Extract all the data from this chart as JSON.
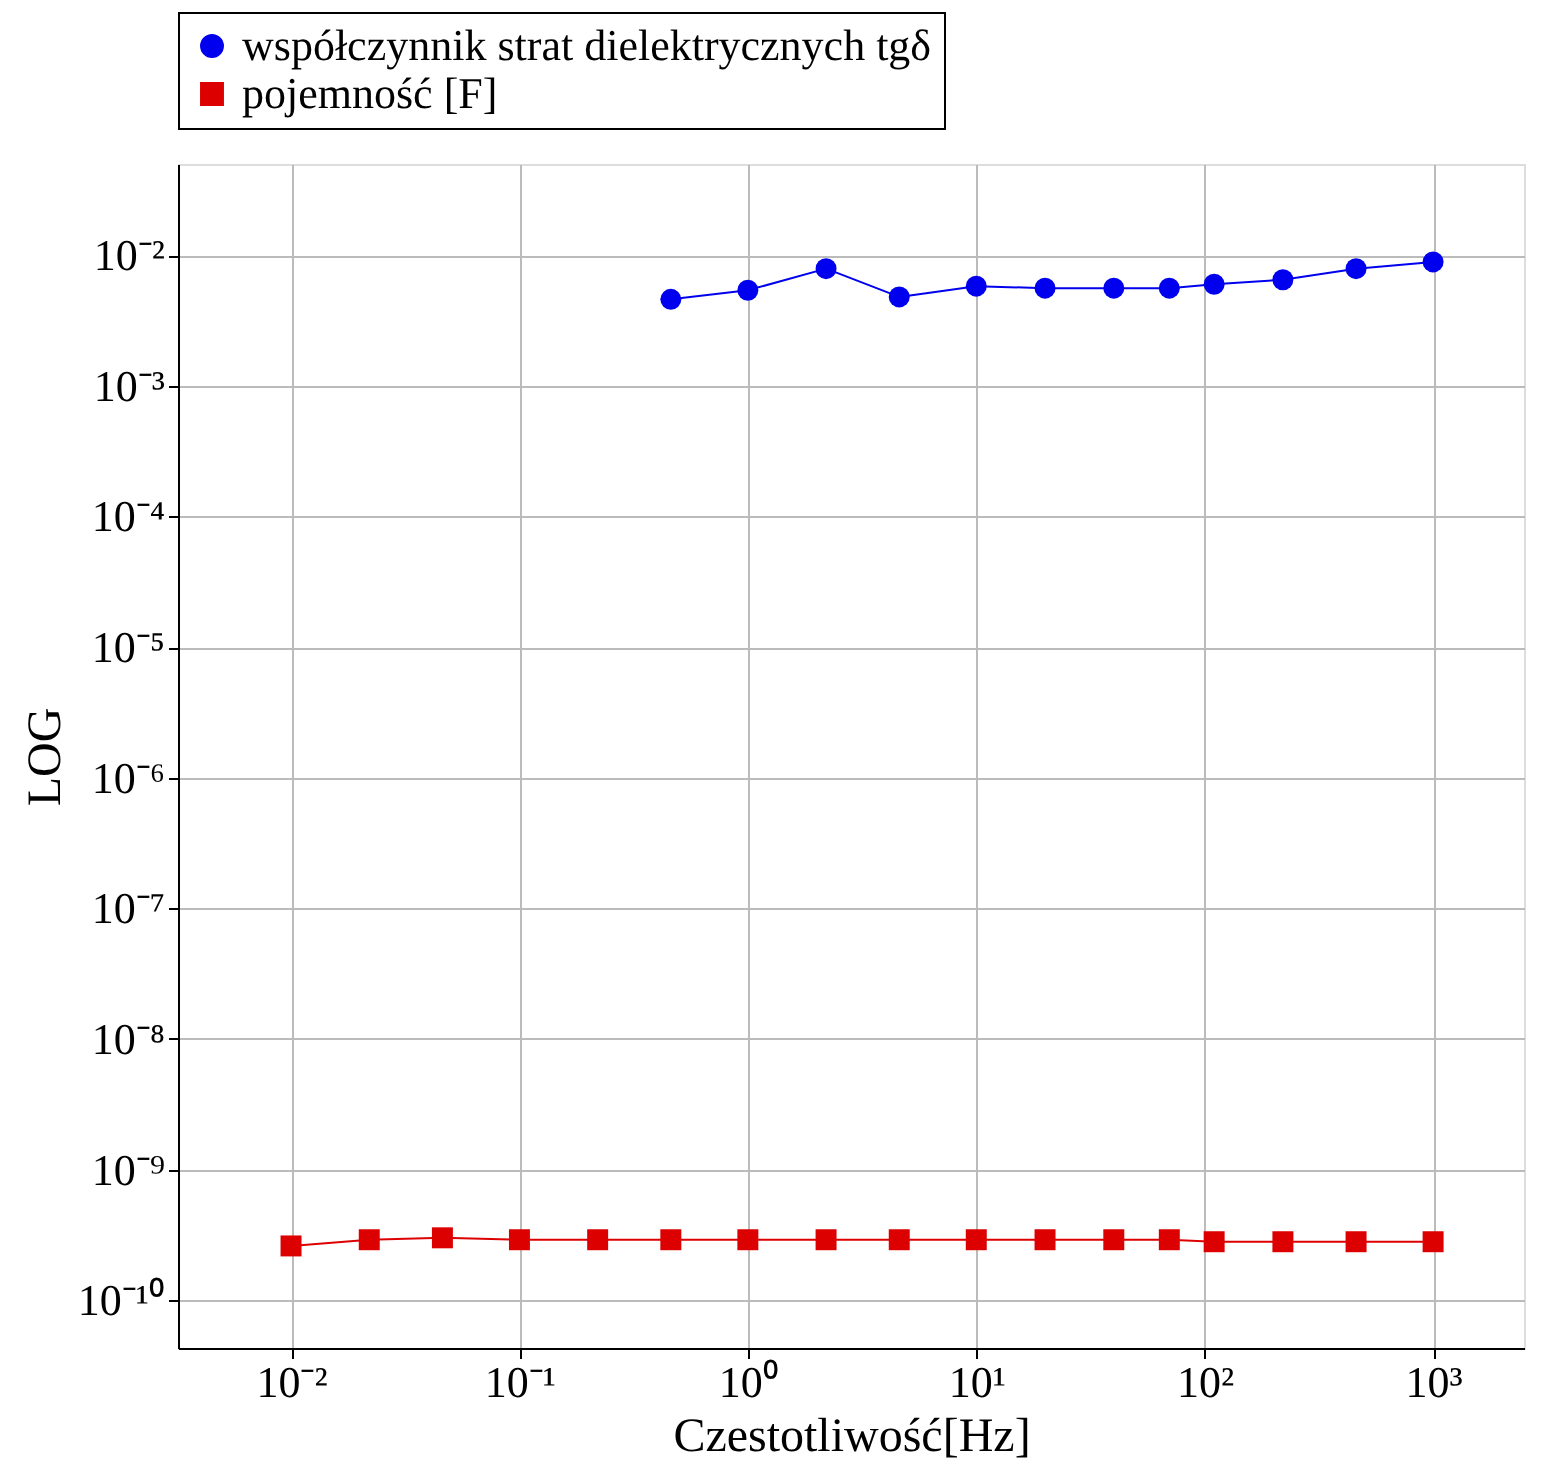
{
  "chart_data": {
    "type": "line",
    "xlabel": "Czestotliwość[Hz]",
    "ylabel": "LOG",
    "log": "xy",
    "grid": true,
    "legend": "top",
    "xlim": [
      0.0032,
      2500
    ],
    "ylim": [
      4.3e-11,
      0.05
    ],
    "xticks": [
      {
        "value": 0.01,
        "label": "10⁻²"
      },
      {
        "value": 0.1,
        "label": "10⁻¹"
      },
      {
        "value": 1,
        "label": "10⁰"
      },
      {
        "value": 10,
        "label": "10¹"
      },
      {
        "value": 100,
        "label": "10²"
      },
      {
        "value": 1000,
        "label": "10³"
      }
    ],
    "yticks": [
      {
        "value": 1e-10,
        "label": "10⁻¹⁰"
      },
      {
        "value": 1e-09,
        "label": "10⁻⁹"
      },
      {
        "value": 1e-08,
        "label": "10⁻⁸"
      },
      {
        "value": 1e-07,
        "label": "10⁻⁷"
      },
      {
        "value": 1e-06,
        "label": "10⁻⁶"
      },
      {
        "value": 1e-05,
        "label": "10⁻⁵"
      },
      {
        "value": 0.0001,
        "label": "10⁻⁴"
      },
      {
        "value": 0.001,
        "label": "10⁻³"
      },
      {
        "value": 0.01,
        "label": "10⁻²"
      }
    ],
    "series": [
      {
        "name": "współczynnik strat dielektrycznych tgδ",
        "color": "#0000ee",
        "marker": "circle",
        "x": [
          0.46,
          1,
          2.2,
          4.6,
          10,
          20,
          40,
          70,
          110,
          220,
          460,
          1000
        ],
        "values": [
          0.0046,
          0.0054,
          0.0079,
          0.0048,
          0.0058,
          0.0056,
          0.0056,
          0.0056,
          0.006,
          0.0065,
          0.0079,
          0.0089
        ]
      },
      {
        "name": "pojemność [F]",
        "color": "#dd0000",
        "marker": "square",
        "x": [
          0.01,
          0.022,
          0.046,
          0.1,
          0.22,
          0.46,
          1,
          2.2,
          4.6,
          10,
          20,
          40,
          70,
          110,
          220,
          460,
          1000
        ],
        "values": [
          2.6e-10,
          2.9e-10,
          3e-10,
          2.9e-10,
          2.9e-10,
          2.9e-10,
          2.9e-10,
          2.9e-10,
          2.9e-10,
          2.9e-10,
          2.9e-10,
          2.9e-10,
          2.9e-10,
          2.8e-10,
          2.8e-10,
          2.8e-10,
          2.8e-10
        ]
      }
    ]
  }
}
